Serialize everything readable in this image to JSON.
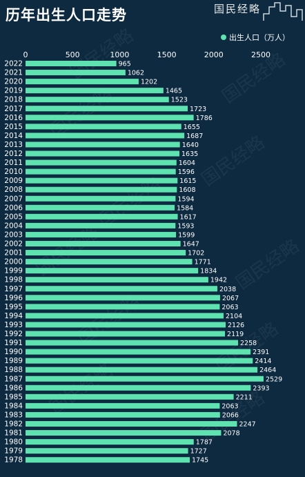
{
  "page": {
    "title": "历年出生人口走势",
    "logo_text": "国民经略",
    "legend_label": "出生人口（万人）",
    "watermark_text": "国民经略"
  },
  "colors": {
    "background": "#0d2a40",
    "bar": "#5ee3b0",
    "text": "#ffffff"
  },
  "chart_data": {
    "type": "bar",
    "orientation": "horizontal",
    "title": "历年出生人口走势",
    "series": [
      {
        "name": "出生人口（万人）",
        "values": [
          965,
          1062,
          1202,
          1465,
          1523,
          1723,
          1786,
          1655,
          1687,
          1640,
          1635,
          1604,
          1596,
          1615,
          1608,
          1594,
          1584,
          1617,
          1593,
          1599,
          1647,
          1702,
          1771,
          1834,
          1942,
          2038,
          2067,
          2063,
          2104,
          2126,
          2119,
          2258,
          2391,
          2414,
          2464,
          2529,
          2393,
          2211,
          2063,
          2066,
          2247,
          2078,
          1787,
          1727,
          1745
        ]
      }
    ],
    "categories": [
      "2022",
      "2021",
      "2020",
      "2019",
      "2018",
      "2017",
      "2016",
      "2015",
      "2014",
      "2013",
      "2012",
      "2011",
      "2010",
      "2009",
      "2008",
      "2007",
      "2006",
      "2005",
      "2004",
      "2003",
      "2002",
      "2001",
      "2000",
      "1999",
      "1998",
      "1997",
      "1996",
      "1995",
      "1994",
      "1993",
      "1992",
      "1991",
      "1990",
      "1989",
      "1988",
      "1987",
      "1986",
      "1985",
      "1984",
      "1983",
      "1982",
      "1981",
      "1980",
      "1979",
      "1978"
    ],
    "xlim": [
      0,
      2500
    ],
    "xticks": [
      "0",
      "500",
      "1000",
      "1500",
      "2000",
      "2500"
    ],
    "legend_position": "top-right",
    "grid": false
  }
}
